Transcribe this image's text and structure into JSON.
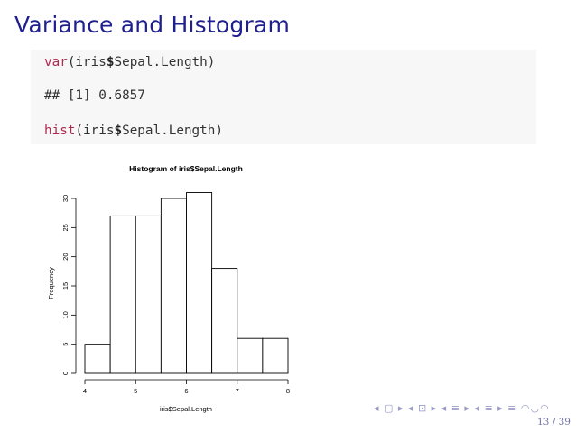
{
  "slide": {
    "title": "Variance and Histogram",
    "page_number": "13 / 39",
    "nav_symbols": "◂ ▢ ▸ ◂ ⊡ ▸ ◂ ≡ ▸ ◂ ≡ ▸ ≡ ◠◡◠"
  },
  "code": {
    "line1": {
      "fn": "var",
      "pre": "(iris",
      "dollar": "$",
      "post": "Sepal.Length)"
    },
    "output": "## [1] 0.6857",
    "line2": {
      "fn": "hist",
      "pre": "(iris",
      "dollar": "$",
      "post": "Sepal.Length)"
    }
  },
  "colors": {
    "title": "#1f1f8f",
    "keyword": "#b02a4e",
    "code_bg": "#f7f7f7"
  },
  "chart_data": {
    "type": "bar",
    "title": "Histogram of iris$Sepal.Length",
    "xlabel": "iris$Sepal.Length",
    "ylabel": "Frequency",
    "bins": [
      {
        "from": 4.0,
        "to": 4.5,
        "count": 5
      },
      {
        "from": 4.5,
        "to": 5.0,
        "count": 27
      },
      {
        "from": 5.0,
        "to": 5.5,
        "count": 27
      },
      {
        "from": 5.5,
        "to": 6.0,
        "count": 30
      },
      {
        "from": 6.0,
        "to": 6.5,
        "count": 31
      },
      {
        "from": 6.5,
        "to": 7.0,
        "count": 18
      },
      {
        "from": 7.0,
        "to": 7.5,
        "count": 6
      },
      {
        "from": 7.5,
        "to": 8.0,
        "count": 6
      }
    ],
    "xlim": [
      4,
      8
    ],
    "ylim": [
      0,
      31
    ],
    "x_ticks": [
      4,
      5,
      6,
      7,
      8
    ],
    "y_ticks": [
      0,
      5,
      10,
      15,
      20,
      25,
      30
    ],
    "grid": false
  }
}
